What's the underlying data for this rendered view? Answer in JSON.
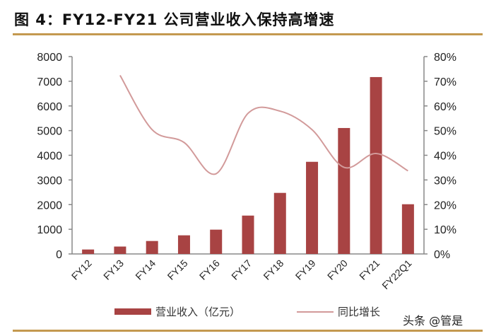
{
  "title": "图 4：FY12-FY21 公司营业收入保持高增速",
  "watermark": "头条 @管是",
  "colors": {
    "bar": "#a84343",
    "line": "#d29a9a",
    "axis": "#888888",
    "rule": "#c4994f"
  },
  "chart_data": {
    "type": "bar+line",
    "categories": [
      "FY12",
      "FY13",
      "FY14",
      "FY15",
      "FY16",
      "FY17",
      "FY18",
      "FY19",
      "FY20",
      "FY21",
      "FY22Q1"
    ],
    "series": [
      {
        "name": "营业收入（亿元）",
        "type": "bar",
        "axis": "left",
        "values": [
          180,
          300,
          525,
          755,
          985,
          1555,
          2475,
          3735,
          5105,
          7170,
          2015
        ]
      },
      {
        "name": "同比增长",
        "type": "line",
        "axis": "right",
        "smooth": true,
        "values": [
          null,
          72.4,
          50.4,
          45.2,
          32.5,
          57.0,
          57.9,
          50.4,
          35.1,
          40.7,
          33.7
        ]
      }
    ],
    "left_axis": {
      "ylim": [
        0,
        8000
      ],
      "ticks": [
        "0",
        "1000",
        "2000",
        "3000",
        "4000",
        "5000",
        "6000",
        "7000",
        "8000"
      ]
    },
    "right_axis": {
      "ylim": [
        0,
        80
      ],
      "ticks": [
        "0%",
        "10%",
        "20%",
        "30%",
        "40%",
        "50%",
        "60%",
        "70%",
        "80%"
      ]
    },
    "grid": false,
    "legend": "bottom"
  }
}
